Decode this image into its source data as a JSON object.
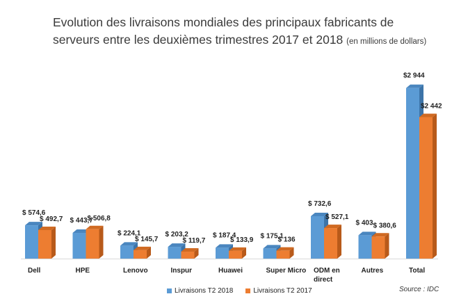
{
  "title": {
    "main": "Evolution des livraisons mondiales des principaux fabricants de serveurs entre les deuxièmes trimestres 2017 et 2018",
    "sub": "(en millions de dollars)"
  },
  "source": "Source : IDC",
  "chart_data": {
    "type": "bar",
    "title": "Evolution des livraisons mondiales des principaux fabricants de serveurs entre les deuxièmes trimestres 2017 et 2018 (en millions de dollars)",
    "categories": [
      "Dell",
      "HPE",
      "Lenovo",
      "Inspur",
      "Huawei",
      "Super Micro",
      "ODM en direct",
      "Autres",
      "Total"
    ],
    "category_lines": [
      [
        "Dell"
      ],
      [
        "HPE"
      ],
      [
        "Lenovo"
      ],
      [
        "Inspur"
      ],
      [
        "Huawei"
      ],
      [
        "Super Micro"
      ],
      [
        "ODM en",
        "direct"
      ],
      [
        "Autres"
      ],
      [
        "Total"
      ]
    ],
    "series": [
      {
        "name": "Livraisons T2 2018",
        "color": "#5b9bd5",
        "values": [
          574.6,
          443.7,
          224.1,
          203.2,
          187.4,
          175.1,
          732.6,
          403,
          2944
        ],
        "labels": [
          "$ 574,6",
          "$ 443,7",
          "$ 224,1",
          "$ 203,2",
          "$ 187,4",
          "$ 175,1",
          "$ 732,6",
          "$ 403",
          "$2 944"
        ]
      },
      {
        "name": "Livraisons T2 2017",
        "color": "#ed7d31",
        "values": [
          492.7,
          506.8,
          145.7,
          119.7,
          133.9,
          136,
          527.1,
          380.6,
          2442
        ],
        "labels": [
          "$ 492,7",
          "$ 506,8",
          "$ 145,7",
          "$ 119,7",
          "$ 133,9",
          "$ 136",
          "$ 527,1",
          "$ 380,6",
          "$2 442"
        ]
      }
    ],
    "grid": false,
    "legend": "bottom"
  }
}
